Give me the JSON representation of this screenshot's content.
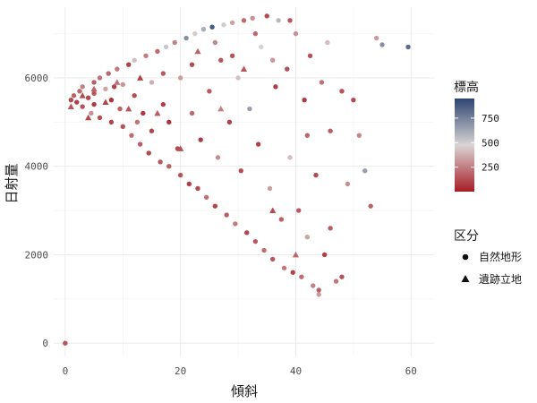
{
  "chart_data": {
    "type": "scatter",
    "xlabel": "傾斜",
    "ylabel": "日射量",
    "xlim": [
      -2,
      64
    ],
    "ylim": [
      -300,
      7600
    ],
    "x_ticks": [
      0,
      20,
      40,
      60
    ],
    "y_ticks": [
      0,
      2000,
      4000,
      6000
    ],
    "grid": true,
    "color_legend": {
      "title": "標高",
      "range": [
        0,
        950
      ],
      "ticks": [
        250,
        500,
        750
      ],
      "low_color": "#A71C25",
      "mid_color": "#D9D4D4",
      "high_color": "#2C4571"
    },
    "shape_legend": {
      "title": "区分",
      "entries": [
        {
          "label": "自然地形",
          "shape": "circle"
        },
        {
          "label": "遺跡立地",
          "shape": "triangle"
        }
      ]
    },
    "series": [
      {
        "name": "自然地形",
        "shape": "circle",
        "points": [
          [
            0,
            0,
            150
          ],
          [
            1,
            5500,
            120
          ],
          [
            1.5,
            5600,
            180
          ],
          [
            2,
            5450,
            90
          ],
          [
            2.5,
            5700,
            200
          ],
          [
            3,
            5350,
            140
          ],
          [
            3,
            5800,
            260
          ],
          [
            4,
            5550,
            110
          ],
          [
            4.5,
            5200,
            300
          ],
          [
            5,
            5900,
            170
          ],
          [
            5,
            5400,
            80
          ],
          [
            6,
            6000,
            220
          ],
          [
            6,
            5100,
            130
          ],
          [
            7,
            5750,
            350
          ],
          [
            7.5,
            6100,
            190
          ],
          [
            8,
            5000,
            100
          ],
          [
            8,
            5500,
            60
          ],
          [
            9,
            6200,
            240
          ],
          [
            9.5,
            5300,
            180
          ],
          [
            10,
            4900,
            140
          ],
          [
            10,
            5850,
            310
          ],
          [
            11,
            6300,
            90
          ],
          [
            11.5,
            4700,
            210
          ],
          [
            12,
            5600,
            130
          ],
          [
            12,
            6400,
            420
          ],
          [
            13,
            4500,
            170
          ],
          [
            13.5,
            5200,
            80
          ],
          [
            14,
            6500,
            250
          ],
          [
            14.5,
            4300,
            120
          ],
          [
            15,
            5900,
            380
          ],
          [
            15,
            4800,
            100
          ],
          [
            16,
            6600,
            200
          ],
          [
            16.5,
            4100,
            150
          ],
          [
            17,
            5400,
            90
          ],
          [
            17.5,
            6700,
            520
          ],
          [
            18,
            4000,
            180
          ],
          [
            18,
            5000,
            60
          ],
          [
            19,
            6800,
            260
          ],
          [
            19.5,
            4400,
            110
          ],
          [
            20,
            3800,
            140
          ],
          [
            20,
            6000,
            330
          ],
          [
            21,
            6900,
            700
          ],
          [
            21.5,
            3600,
            90
          ],
          [
            22,
            5200,
            200
          ],
          [
            22.5,
            7000,
            450
          ],
          [
            23,
            3500,
            120
          ],
          [
            23.5,
            4600,
            80
          ],
          [
            24,
            7100,
            610
          ],
          [
            24.5,
            3300,
            220
          ],
          [
            25,
            5700,
            160
          ],
          [
            25.5,
            7150,
            880
          ],
          [
            26,
            3100,
            100
          ],
          [
            26.5,
            4200,
            290
          ],
          [
            27,
            6400,
            140
          ],
          [
            27.5,
            7200,
            500
          ],
          [
            28,
            2900,
            170
          ],
          [
            28.5,
            5000,
            90
          ],
          [
            29,
            7250,
            350
          ],
          [
            29.5,
            2700,
            240
          ],
          [
            30,
            6000,
            420
          ],
          [
            30.5,
            3900,
            130
          ],
          [
            31,
            7300,
            200
          ],
          [
            31.5,
            2500,
            110
          ],
          [
            32,
            5300,
            650
          ],
          [
            32.5,
            7350,
            300
          ],
          [
            33,
            2300,
            160
          ],
          [
            33.5,
            4500,
            90
          ],
          [
            34,
            6700,
            480
          ],
          [
            34.5,
            2100,
            210
          ],
          [
            35,
            7400,
            120
          ],
          [
            35.5,
            3500,
            340
          ],
          [
            36,
            1900,
            150
          ],
          [
            36.5,
            5800,
            90
          ],
          [
            37,
            7300,
            560
          ],
          [
            37.5,
            2800,
            180
          ],
          [
            38,
            1700,
            240
          ],
          [
            38.5,
            6200,
            130
          ],
          [
            39,
            4200,
            420
          ],
          [
            39.5,
            1600,
            100
          ],
          [
            40,
            7000,
            300
          ],
          [
            40.5,
            3000,
            160
          ],
          [
            41,
            1500,
            210
          ],
          [
            41.5,
            5500,
            80
          ],
          [
            42,
            2400,
            350
          ],
          [
            42.5,
            6500,
            140
          ],
          [
            43,
            1300,
            260
          ],
          [
            43.5,
            3800,
            120
          ],
          [
            44,
            1100,
            330
          ],
          [
            44.5,
            5900,
            220
          ],
          [
            45,
            2000,
            90
          ],
          [
            45.5,
            6800,
            410
          ],
          [
            46,
            4800,
            170
          ],
          [
            47,
            1400,
            230
          ],
          [
            48,
            5700,
            140
          ],
          [
            49,
            3600,
            300
          ],
          [
            50,
            5500,
            120
          ],
          [
            51,
            4700,
            280
          ],
          [
            52,
            3900,
            650
          ],
          [
            53,
            3100,
            180
          ],
          [
            54,
            6900,
            330
          ],
          [
            55,
            6750,
            700
          ],
          [
            59.5,
            6700,
            820
          ],
          [
            5,
            5650,
            140
          ],
          [
            8.5,
            5800,
            100
          ],
          [
            12.5,
            5000,
            230
          ],
          [
            17,
            6100,
            160
          ],
          [
            22,
            6300,
            120
          ],
          [
            26,
            6800,
            270
          ],
          [
            29,
            6500,
            140
          ],
          [
            33,
            7000,
            200
          ],
          [
            36,
            6400,
            310
          ],
          [
            39,
            7300,
            150
          ],
          [
            42,
            4700,
            190
          ],
          [
            46,
            2600,
            160
          ],
          [
            48,
            1500,
            140
          ],
          [
            44,
            1200,
            180
          ]
        ]
      },
      {
        "name": "遺跡立地",
        "shape": "triangle",
        "points": [
          [
            1,
            5350,
            150
          ],
          [
            3,
            5600,
            120
          ],
          [
            5,
            5750,
            180
          ],
          [
            7,
            5450,
            100
          ],
          [
            9,
            5900,
            220
          ],
          [
            11,
            5300,
            140
          ],
          [
            13,
            6000,
            90
          ],
          [
            16,
            5200,
            160
          ],
          [
            20,
            4400,
            130
          ],
          [
            23,
            6600,
            180
          ],
          [
            27,
            5300,
            260
          ],
          [
            31,
            6200,
            150
          ],
          [
            36,
            3000,
            120
          ],
          [
            40,
            2000,
            190
          ],
          [
            4,
            5100,
            110
          ]
        ]
      }
    ]
  }
}
